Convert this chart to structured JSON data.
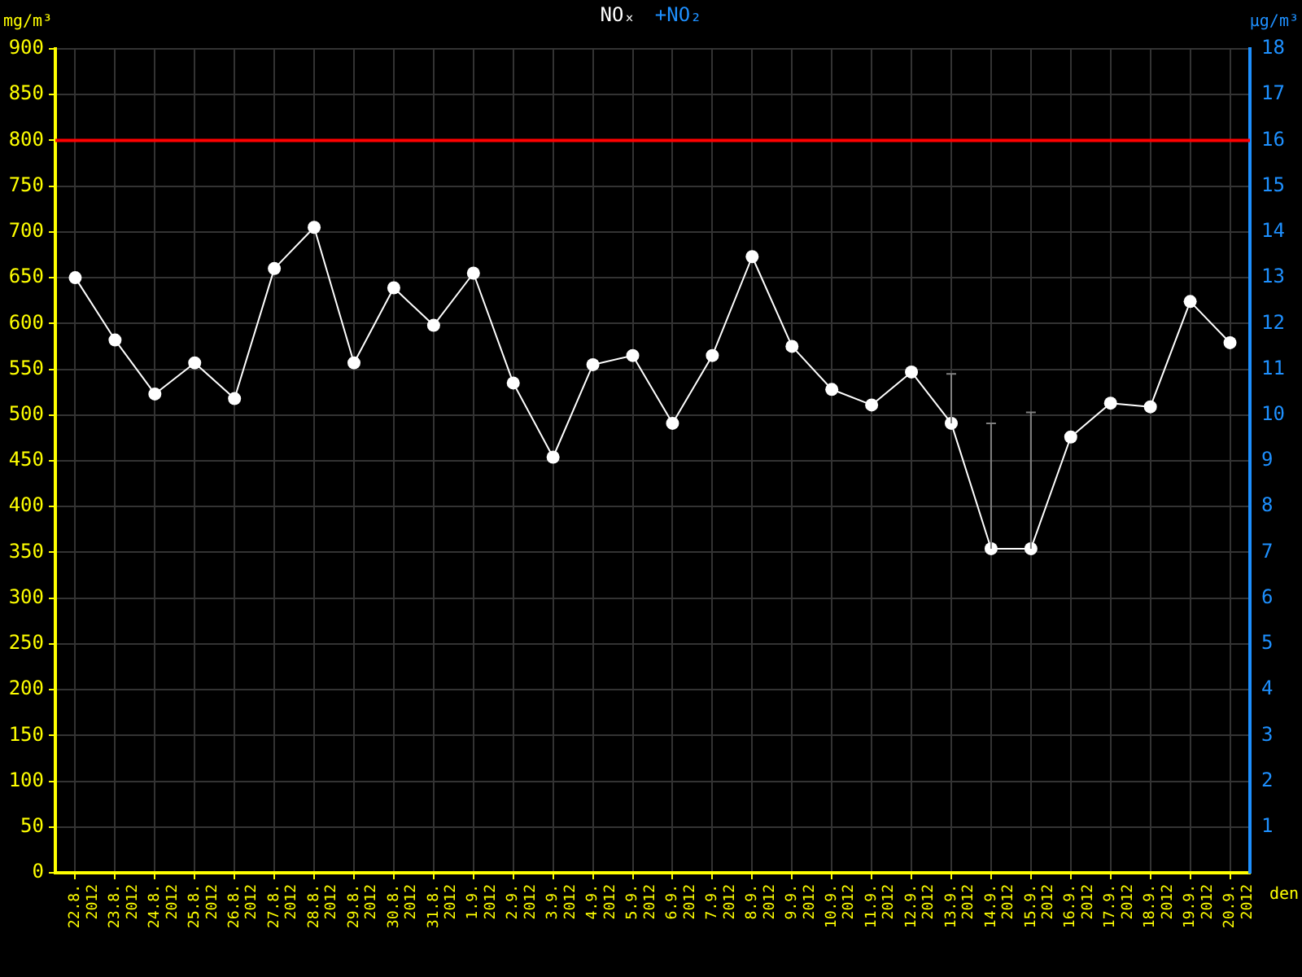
{
  "chart_data": {
    "type": "line",
    "xlabel": "den",
    "ylabel": "mg/m³",
    "y2label": "µg/m³",
    "categories": [
      "22.8. 2012",
      "23.8. 2012",
      "24.8. 2012",
      "25.8. 2012",
      "26.8. 2012",
      "27.8. 2012",
      "28.8. 2012",
      "29.8. 2012",
      "30.8. 2012",
      "31.8. 2012",
      "1.9. 2012",
      "2.9. 2012",
      "3.9. 2012",
      "4.9. 2012",
      "5.9. 2012",
      "6.9. 2012",
      "7.9. 2012",
      "8.9. 2012",
      "9.9. 2012",
      "10.9. 2012",
      "11.9. 2012",
      "12.9. 2012",
      "13.9. 2012",
      "14.9. 2012",
      "15.9. 2012",
      "16.9. 2012",
      "17.9. 2012",
      "18.9. 2012",
      "19.9. 2012",
      "20.9. 2012"
    ],
    "series": [
      {
        "name": "NOₓ",
        "color": "#ffffff",
        "values": [
          650,
          582,
          523,
          557,
          518,
          660,
          705,
          557,
          639,
          598,
          655,
          535,
          454,
          555,
          565,
          491,
          565,
          673,
          575,
          528,
          511,
          547,
          491,
          354,
          354,
          476,
          513,
          509,
          624,
          579
        ],
        "errors": [
          null,
          null,
          null,
          null,
          null,
          null,
          null,
          null,
          null,
          null,
          null,
          null,
          null,
          null,
          null,
          null,
          null,
          null,
          null,
          null,
          null,
          null,
          [
            491,
            545
          ],
          [
            354,
            491
          ],
          [
            354,
            503
          ],
          null,
          null,
          null,
          null,
          null
        ]
      },
      {
        "name": "+NO₂",
        "color": "#1e90ff",
        "axis": "y2",
        "values": [
          null,
          null,
          null,
          null,
          null,
          null,
          null,
          null,
          null,
          null,
          null,
          null,
          null,
          null,
          null,
          null,
          null,
          null,
          null,
          null,
          null,
          null,
          null,
          null,
          null,
          null,
          null,
          null,
          null,
          null
        ]
      }
    ],
    "ylim": [
      0,
      900
    ],
    "yticks": [
      0,
      50,
      100,
      150,
      200,
      250,
      300,
      350,
      400,
      450,
      500,
      550,
      600,
      650,
      700,
      750,
      800,
      850,
      900
    ],
    "y2lim": [
      0,
      18
    ],
    "y2ticks": [
      1,
      2,
      3,
      4,
      5,
      6,
      7,
      8,
      9,
      10,
      11,
      12,
      13,
      14,
      15,
      16,
      17,
      18
    ],
    "ref_lines": [
      {
        "axis": "y",
        "value": 800,
        "color": "#ff0000"
      }
    ],
    "grid": true,
    "legend": "top",
    "marker": "circle",
    "line_style": "solid"
  }
}
